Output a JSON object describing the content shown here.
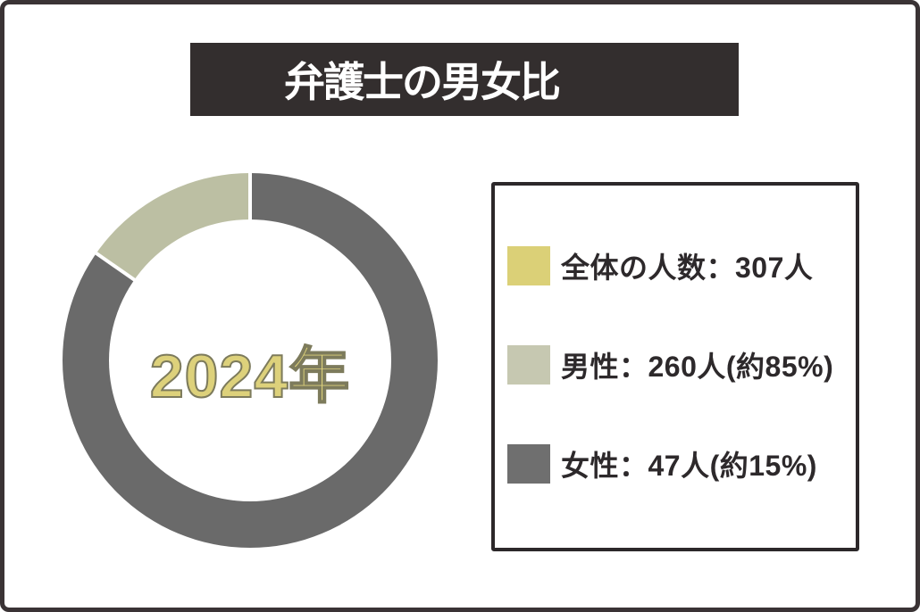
{
  "title": {
    "text": "弁護士の男女比",
    "bg_color": "#332e2e",
    "text_color": "#ffffff"
  },
  "chart_data": {
    "type": "donut",
    "title": "弁護士の男女比",
    "center_label": "2024年",
    "center_label_color": "#ddd17b",
    "center_label_outline_color": "#7d7b5c",
    "start_angle_deg": 0,
    "clockwise": true,
    "separator_color": "#ffffff",
    "total": {
      "label": "全体の人数",
      "value": 307,
      "unit": "人"
    },
    "segments": [
      {
        "label": "男性",
        "value": 260,
        "approx_percent": 85,
        "ring_color": "#6a6a6a",
        "legend_color": "#c6c8b1"
      },
      {
        "label": "女性",
        "value": 47,
        "approx_percent": 15,
        "ring_color": "#bcbfa3",
        "legend_color": "#6f6f6f"
      }
    ]
  },
  "legend": {
    "border_color": "#2c282a",
    "items": [
      {
        "text": "全体の人数：307人",
        "swatch_color": "#dbd077"
      },
      {
        "text": "男性：260人(約85%)",
        "swatch_color": "#c6c8b1"
      },
      {
        "text": "女性：47人(約15%)",
        "swatch_color": "#6f6f6f"
      }
    ]
  }
}
